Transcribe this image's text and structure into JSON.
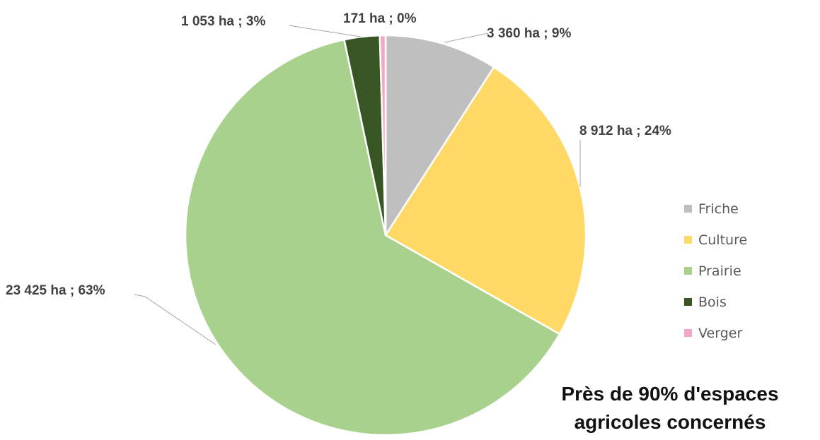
{
  "chart_data": {
    "type": "pie",
    "categories": [
      "Friche",
      "Culture",
      "Prairie",
      "Bois",
      "Verger"
    ],
    "values": [
      3360,
      8912,
      23425,
      1053,
      171
    ],
    "units": "ha",
    "data_labels": [
      "3 360 ha ; 9%",
      "8 912 ha ; 24%",
      "23 425 ha ; 63%",
      "1 053 ha ; 3%",
      "171 ha ; 0%"
    ],
    "colors": [
      "#bfbfbf",
      "#ffd966",
      "#a9d18e",
      "#375623",
      "#f4a6c6"
    ],
    "legend": [
      "Friche",
      "Culture",
      "Prairie",
      "Bois",
      "Verger"
    ],
    "legend_position": "right"
  },
  "caption": {
    "line1": "Près de 90% d'espaces",
    "line2": "agricoles concernés"
  }
}
